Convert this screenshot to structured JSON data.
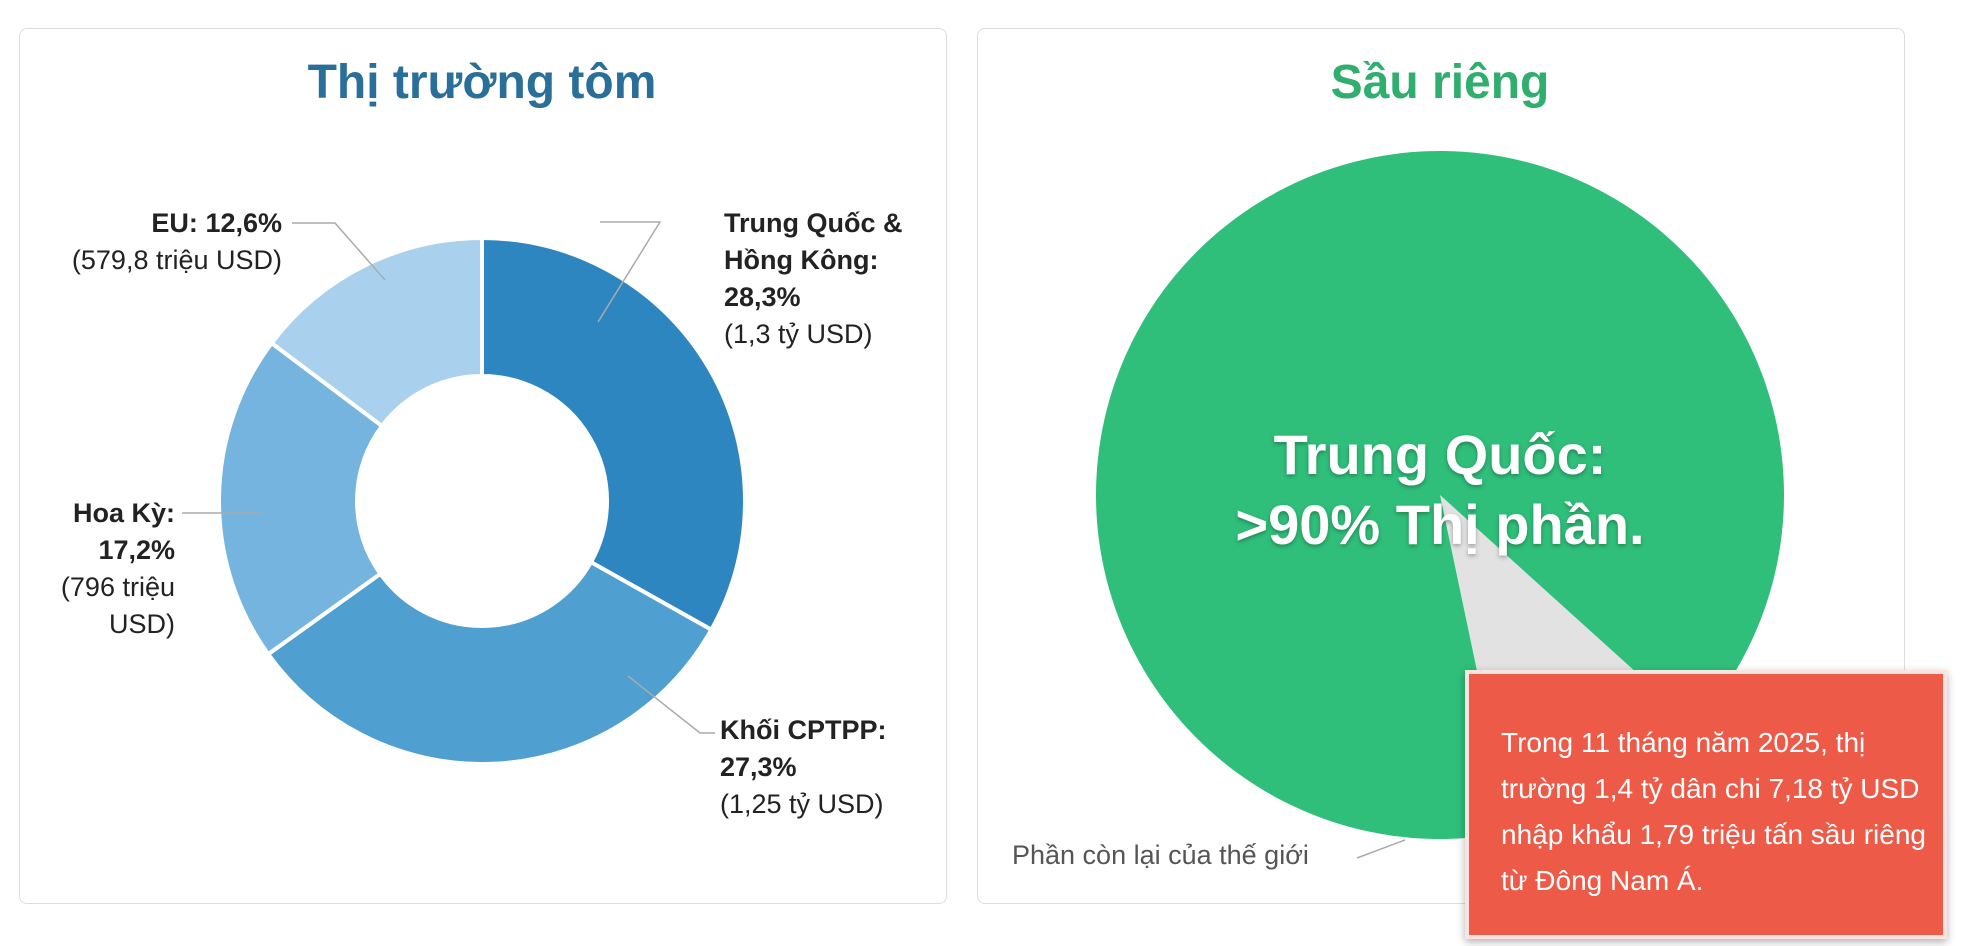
{
  "charts": [
    {
      "type": "donut",
      "title": "Thị trường tôm",
      "categories": [
        "Trung Quốc & Hồng Kông:",
        "Khối CPTPP:",
        "Hoa Kỳ:",
        "EU:"
      ],
      "values": [
        28.3,
        27.3,
        17.2,
        12.6
      ],
      "value_labels": [
        "28,3%",
        "27,3%",
        "17,2%",
        "12,6%"
      ],
      "amounts": [
        "(1,3 tỷ USD)",
        "(1,25 tỷ USD)",
        "(796 triệu USD)",
        "(579,8 triệu USD)"
      ],
      "colors": [
        "#2e86c1",
        "#4f9fd1",
        "#74b4de",
        "#a9d0ec"
      ]
    },
    {
      "type": "pie",
      "title": "Sầu riêng",
      "categories": [
        "Trung Quốc:",
        "Phần còn lại của thế giới"
      ],
      "values": [
        90,
        10
      ],
      "value_labels": [
        ">90% Thị phần.",
        null
      ],
      "colors": [
        "#2fbf7a",
        "#e2e2e2"
      ],
      "annotation": "Trong 11 tháng năm 2025, thị trường 1,4 tỷ dân chi 7,18 tỷ USD nhập khẩu 1,79 triệu tấn sầu riêng từ Đông Nam Á."
    }
  ]
}
